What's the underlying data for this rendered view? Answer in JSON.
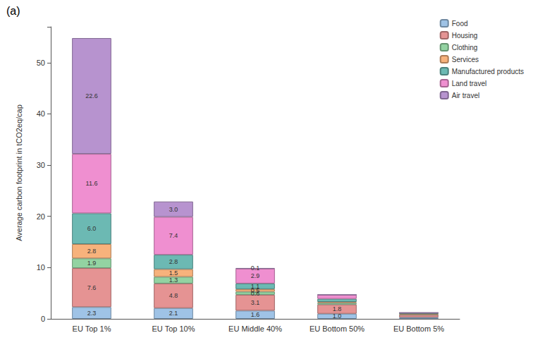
{
  "chart_data": {
    "type": "bar",
    "title": "(a)",
    "y_label": "Average carbon footprint in tCO2eq/cap",
    "categories": [
      "EU Top 1%",
      "EU Top 10%",
      "EU Middle 40%",
      "EU Bottom 50%",
      "EU Bottom 5%"
    ],
    "stacked": true,
    "data_labels": true,
    "grid": false,
    "legend": "upper right",
    "ylim": [
      0,
      57
    ],
    "yticks": [
      0,
      10,
      20,
      30,
      40,
      50
    ],
    "series": [
      {
        "name": "Food",
        "color": "#9fc3e6",
        "values": [
          2.3,
          2.1,
          1.6,
          1.0,
          0.3
        ],
        "value_labels": [
          "2.3",
          "2.1",
          "1.6",
          "1.0",
          null
        ]
      },
      {
        "name": "Housing",
        "color": "#e59393",
        "values": [
          7.6,
          4.8,
          3.1,
          1.8,
          0.5
        ],
        "value_labels": [
          "7.6",
          "4.8",
          "3.1",
          "1.8",
          null
        ]
      },
      {
        "name": "Clothing",
        "color": "#93d3a2",
        "values": [
          1.9,
          1.3,
          0.6,
          0.3,
          0.1
        ],
        "value_labels": [
          "1.9",
          "1.3",
          "0.6",
          null,
          null
        ]
      },
      {
        "name": "Services",
        "color": "#f7b27c",
        "values": [
          2.8,
          1.5,
          0.5,
          0.2,
          0.1
        ],
        "value_labels": [
          "2.8",
          "1.5",
          "0.5",
          null,
          null
        ]
      },
      {
        "name": "Manufactured products",
        "color": "#6cb9b3",
        "values": [
          6.0,
          2.8,
          1.1,
          0.6,
          0.1
        ],
        "value_labels": [
          "6.0",
          "2.8",
          "1.1",
          null,
          null
        ]
      },
      {
        "name": "Land travel",
        "color": "#ef8fd0",
        "values": [
          11.6,
          7.4,
          2.9,
          0.8,
          0.1
        ],
        "value_labels": [
          "11.6",
          "7.4",
          "2.9",
          null,
          null
        ]
      },
      {
        "name": "Air travel",
        "color": "#b793cf",
        "values": [
          22.6,
          3.0,
          0.1,
          0.0,
          0.0
        ],
        "value_labels": [
          "22.6",
          "3.0",
          "0.1",
          null,
          null
        ]
      }
    ]
  }
}
